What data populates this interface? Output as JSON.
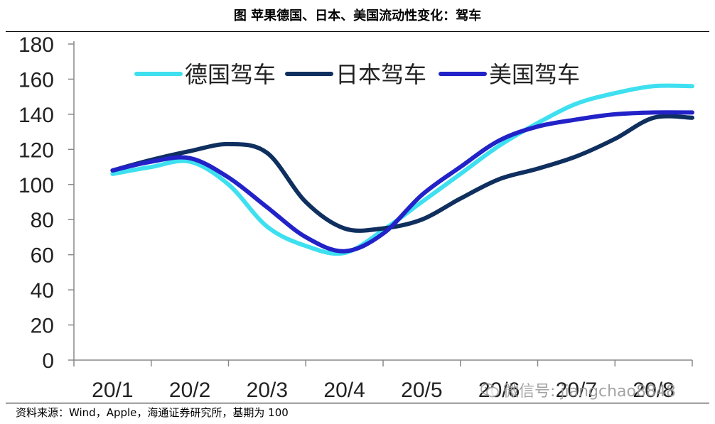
{
  "title": "图  苹果德国、日本、美国流动性变化：驾车",
  "source": "资料来源：Wind，Apple，海通证券研究所，基期为 100",
  "watermark": "微信号: jiangchao8848",
  "chart_data": {
    "type": "line",
    "title": "图  苹果德国、日本、美国流动性变化：驾车",
    "categories": [
      "20/1",
      "20/2",
      "20/3",
      "20/4",
      "20/5",
      "20/6",
      "20/7",
      "20/8"
    ],
    "x": [
      0,
      0.5,
      1,
      1.5,
      2,
      2.5,
      3,
      3.5,
      4,
      4.5,
      5,
      5.5,
      6,
      6.5,
      7,
      7.5
    ],
    "ylim": [
      0,
      180
    ],
    "yticks": [
      0,
      20,
      40,
      60,
      80,
      100,
      120,
      140,
      160,
      180
    ],
    "grid": false,
    "legend": "top",
    "series": [
      {
        "name": "德国驾车",
        "color": "#3ee0f0",
        "values": [
          106,
          110,
          113,
          100,
          76,
          65,
          61,
          74,
          90,
          106,
          122,
          135,
          146,
          152,
          156,
          156
        ]
      },
      {
        "name": "日本驾车",
        "color": "#0f2f5f",
        "values": [
          108,
          114,
          119,
          123,
          118,
          90,
          75,
          75,
          80,
          92,
          103,
          109,
          116,
          126,
          138,
          138
        ]
      },
      {
        "name": "美国驾车",
        "color": "#2222c8",
        "values": [
          108,
          113,
          115,
          104,
          87,
          70,
          62,
          72,
          94,
          110,
          125,
          133,
          137,
          140,
          141,
          141
        ]
      }
    ]
  }
}
